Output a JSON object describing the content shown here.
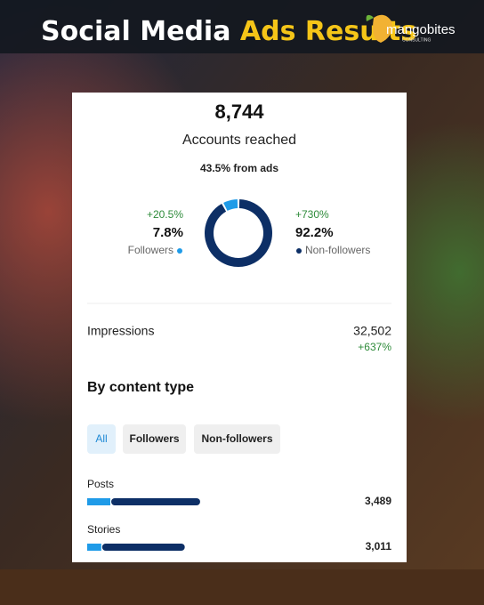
{
  "header": {
    "title": "Social Media",
    "highlight": "Ads Results",
    "logo": {
      "name": "mangobites",
      "tagline": "CONSULTING"
    }
  },
  "card": {
    "reach": {
      "total": "8,744",
      "label": "Accounts reached",
      "from_ads": "43.5% from ads"
    },
    "followers": {
      "change": "+20.5%",
      "share": {
        "value": 7.8,
        "label": "7.8%"
      },
      "label": "Followers",
      "color": "#1f9be8"
    },
    "non_followers": {
      "change": "+730%",
      "share": {
        "value": 92.2,
        "label": "92.2%"
      },
      "label": "Non-followers",
      "color": "#0d2f66"
    },
    "impressions": {
      "label": "Impressions",
      "value": "32,502",
      "change": "+637%"
    },
    "content": {
      "title": "By content type",
      "tabs": [
        "All",
        "Followers",
        "Non-followers"
      ],
      "rows": [
        {
          "label": "Posts",
          "total": "3,489",
          "followers": 720,
          "non_followers": 2769
        },
        {
          "label": "Stories",
          "total": "3,011",
          "followers": 438,
          "non_followers": 2573
        }
      ]
    }
  }
}
